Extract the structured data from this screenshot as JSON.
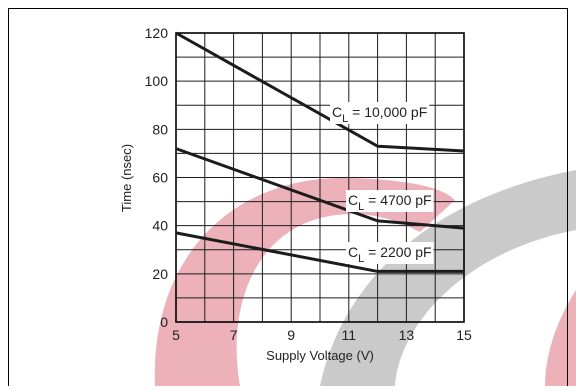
{
  "chart_data": {
    "type": "line",
    "xlabel": "Supply Voltage (V)",
    "ylabel": "Time (nsec)",
    "xlim": [
      5,
      15
    ],
    "ylim": [
      0,
      120
    ],
    "x_ticks": [
      5,
      7,
      9,
      11,
      13,
      15
    ],
    "y_ticks": [
      0,
      20,
      40,
      60,
      80,
      100,
      120
    ],
    "grid": true,
    "series": [
      {
        "name": "C_L = 10,000 pF",
        "label_main": "C",
        "label_sub": "L",
        "label_rest": " = 10,000 pF",
        "x": [
          5,
          12,
          15
        ],
        "y": [
          120,
          73,
          71
        ]
      },
      {
        "name": "C_L = 4700 pF",
        "label_main": "C",
        "label_sub": "L",
        "label_rest": " = 4700 pF",
        "x": [
          5,
          12,
          15
        ],
        "y": [
          72,
          42,
          39
        ]
      },
      {
        "name": "C_L = 2200 pF",
        "label_main": "C",
        "label_sub": "L",
        "label_rest": " = 2200 pF",
        "x": [
          5,
          12,
          15
        ],
        "y": [
          37,
          21,
          21
        ]
      }
    ],
    "colors": {
      "line": "#1c1c1c",
      "grid": "#1c1c1c",
      "watermark_red": "#e9a3ad",
      "watermark_gray": "#c4c4c4"
    }
  }
}
